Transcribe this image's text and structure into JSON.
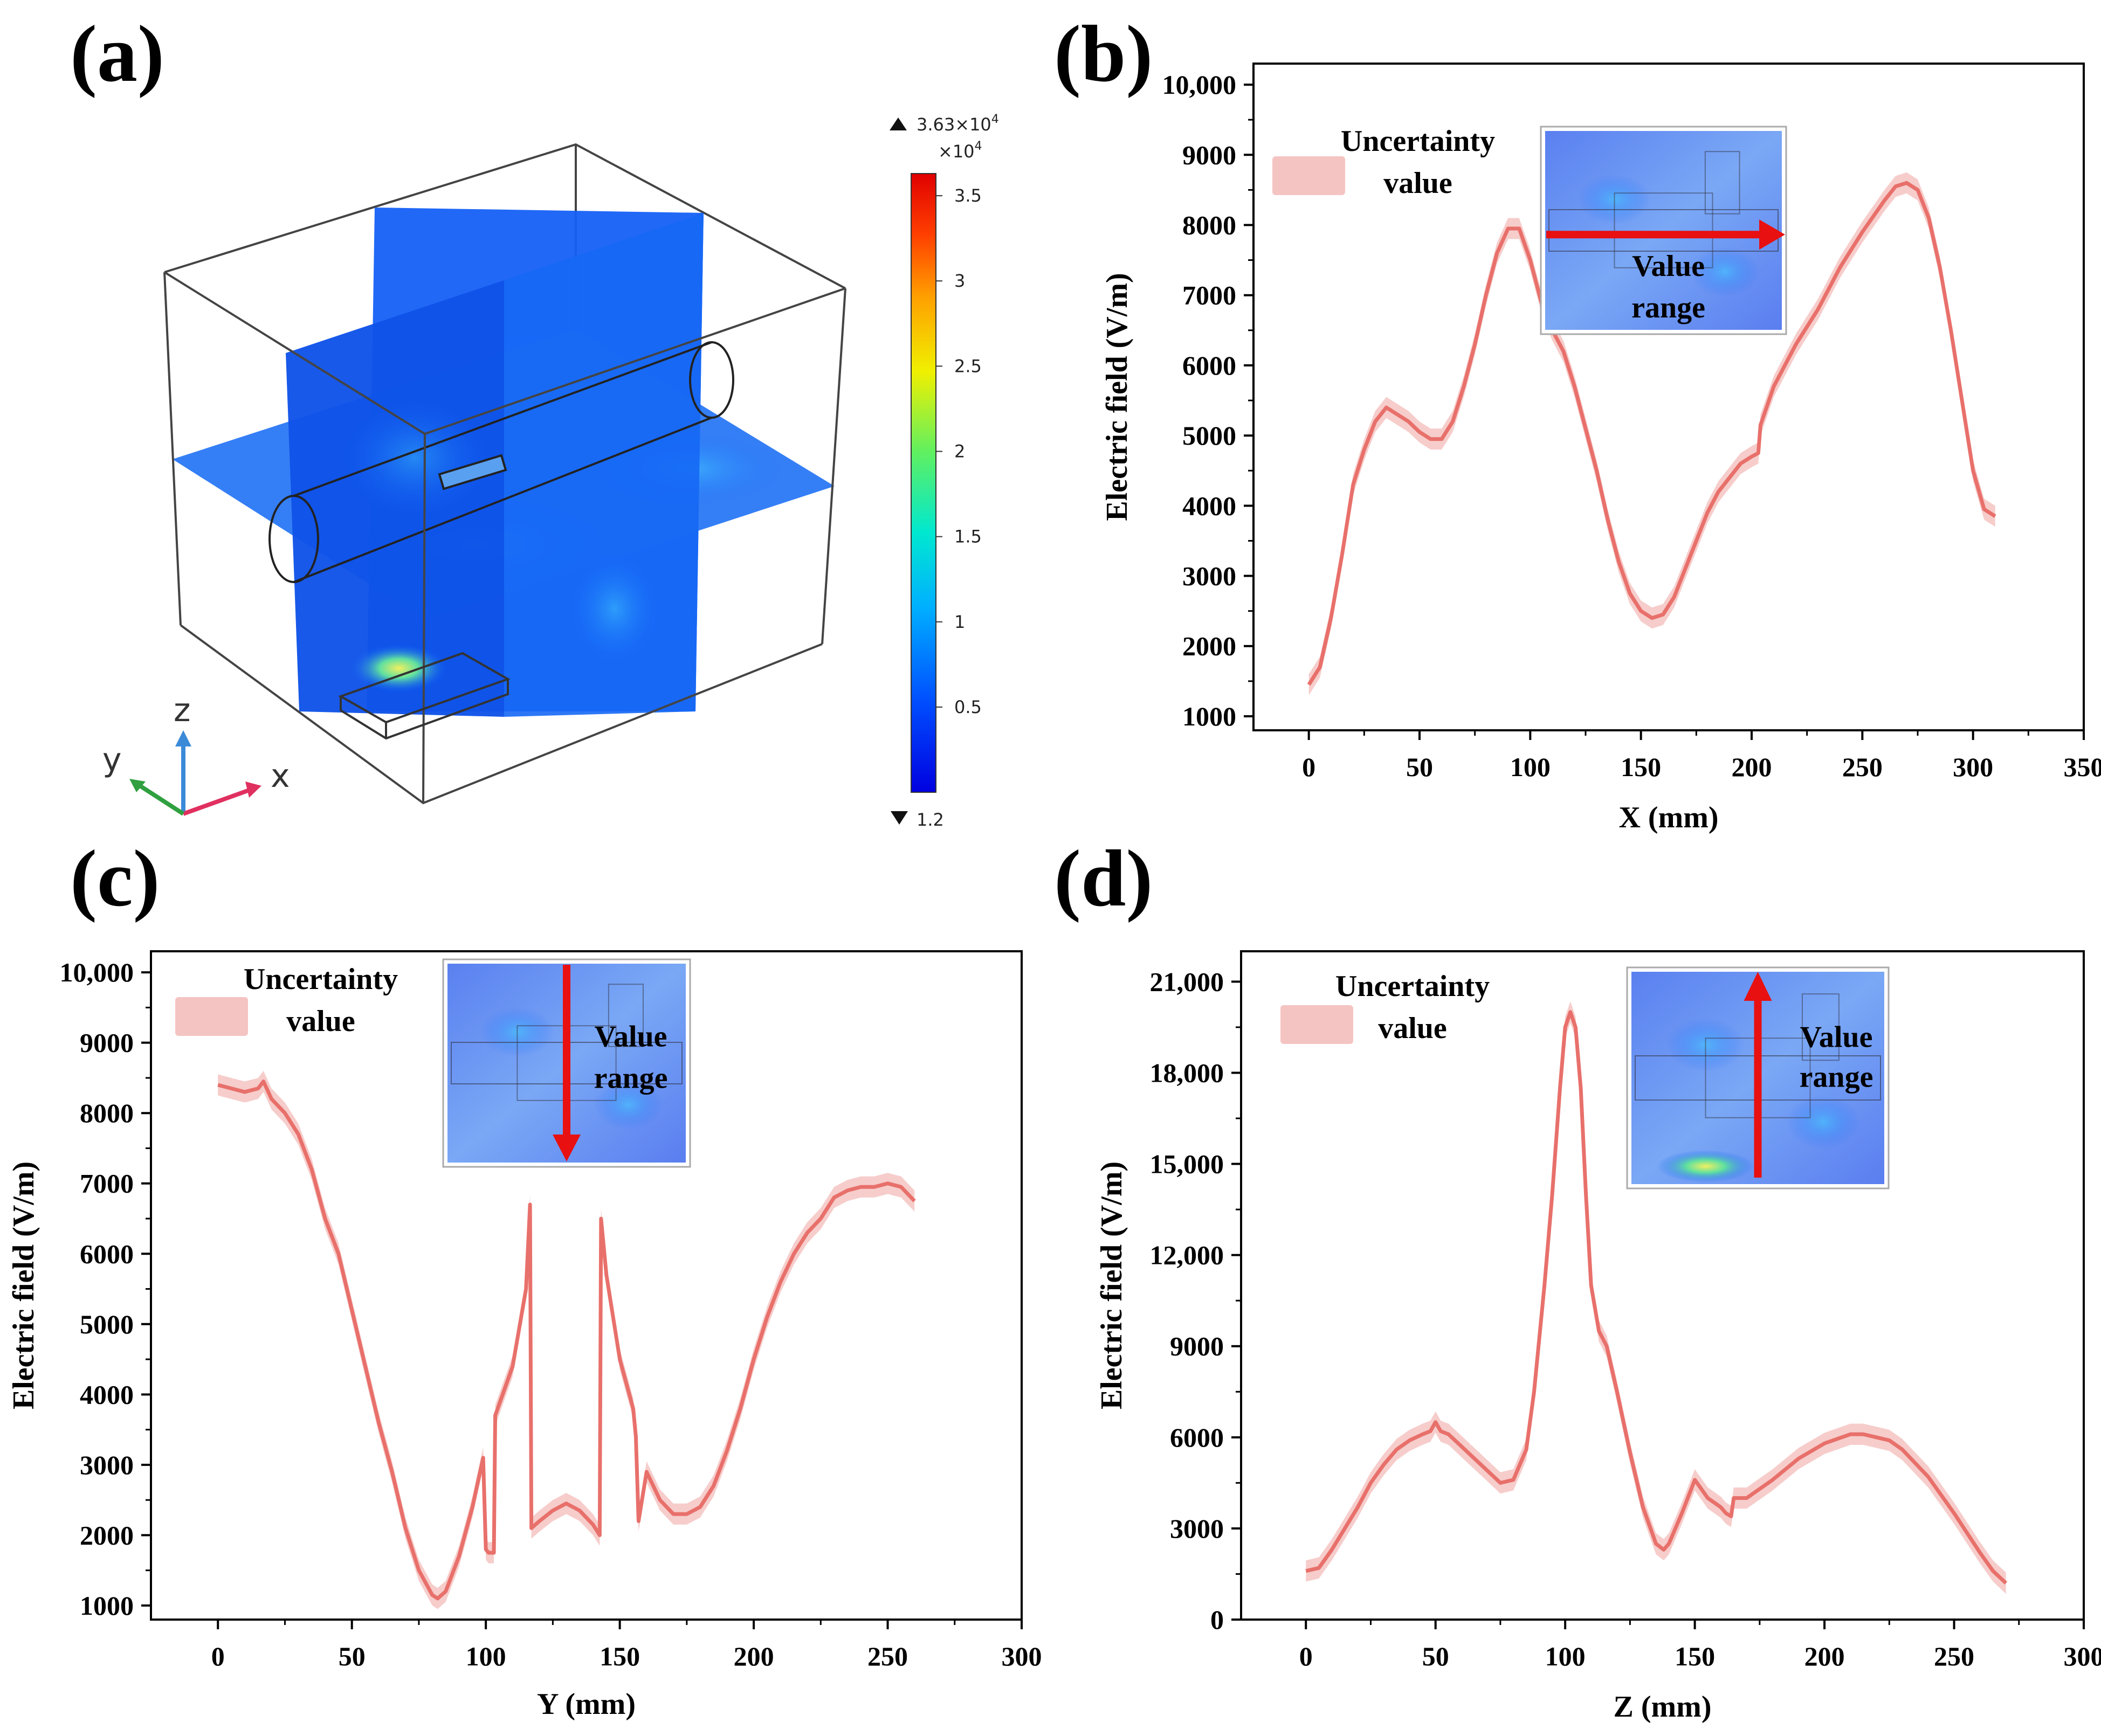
{
  "panels": {
    "a": {
      "label": "(a)",
      "colorbar": {
        "max_label": "3.63×10",
        "max_exp": "4",
        "scale_label": "×10",
        "scale_exp": "4",
        "min_label": "1.2",
        "ticks": [
          "3.5",
          "3",
          "2.5",
          "2",
          "1.5",
          "1",
          "0.5"
        ]
      },
      "axes_triad": {
        "x": "x",
        "y": "y",
        "z": "z"
      }
    },
    "b": {
      "label": "(b)"
    },
    "c": {
      "label": "(c)"
    },
    "d": {
      "label": "(d)"
    }
  },
  "legend_label_line1": "Uncertainty",
  "legend_label_line2": "value",
  "inset_label_line1": "Value",
  "inset_label_line2": "range",
  "colors": {
    "line": "#e8706b",
    "band": "#f4c4c2",
    "arrow": "#e81010"
  },
  "chart_data": [
    {
      "panel": "b",
      "type": "line",
      "xlabel": "X (mm)",
      "ylabel": "Electric field (V/m)",
      "xlim": [
        -25,
        350
      ],
      "ylim": [
        800,
        10300
      ],
      "xticks": [
        0,
        50,
        100,
        150,
        200,
        250,
        300,
        350
      ],
      "yticks": [
        1000,
        2000,
        3000,
        4000,
        5000,
        6000,
        7000,
        8000,
        9000,
        10000
      ],
      "ytick_labels": [
        "1000",
        "2000",
        "3000",
        "4000",
        "5000",
        "6000",
        "7000",
        "8000",
        "9000",
        "10,000"
      ],
      "series": [
        {
          "x": [
            0,
            5,
            10,
            15,
            20,
            25,
            30,
            35,
            40,
            45,
            50,
            55,
            60,
            65,
            70,
            75,
            80,
            85,
            90,
            95,
            100,
            105,
            110,
            115,
            120,
            125,
            130,
            135,
            140,
            145,
            150,
            155,
            160,
            165,
            170,
            175,
            180,
            185,
            190,
            195,
            200,
            203,
            204,
            210,
            220,
            230,
            240,
            250,
            260,
            265,
            270,
            275,
            280,
            285,
            290,
            295,
            300,
            305,
            310
          ],
          "y": [
            1450,
            1700,
            2400,
            3300,
            4300,
            4800,
            5200,
            5400,
            5300,
            5200,
            5050,
            4950,
            4950,
            5200,
            5700,
            6300,
            7000,
            7600,
            7950,
            7950,
            7500,
            6900,
            6500,
            6200,
            5700,
            5100,
            4500,
            3800,
            3200,
            2750,
            2500,
            2400,
            2450,
            2700,
            3100,
            3500,
            3900,
            4200,
            4400,
            4600,
            4700,
            4750,
            5150,
            5700,
            6300,
            6800,
            7400,
            7900,
            8350,
            8550,
            8600,
            8500,
            8100,
            7400,
            6500,
            5500,
            4500,
            3950,
            3850
          ],
          "band": 150
        }
      ]
    },
    {
      "panel": "c",
      "type": "line",
      "xlabel": "Y (mm)",
      "ylabel": "Electric field (V/m)",
      "xlim": [
        -25,
        300
      ],
      "ylim": [
        800,
        10300
      ],
      "xticks": [
        0,
        50,
        100,
        150,
        200,
        250,
        300
      ],
      "yticks": [
        1000,
        2000,
        3000,
        4000,
        5000,
        6000,
        7000,
        8000,
        9000,
        10000
      ],
      "ytick_labels": [
        "1000",
        "2000",
        "3000",
        "4000",
        "5000",
        "6000",
        "7000",
        "8000",
        "9000",
        "10,000"
      ],
      "series": [
        {
          "x": [
            0,
            5,
            10,
            15,
            17,
            20,
            25,
            30,
            35,
            40,
            45,
            50,
            55,
            60,
            65,
            70,
            75,
            80,
            82,
            85,
            90,
            95,
            99,
            100,
            101,
            103,
            103.5,
            110,
            115,
            116.5,
            117,
            120,
            125,
            130,
            135,
            140,
            142.5,
            143,
            145,
            150,
            155,
            156,
            157,
            160,
            165,
            170,
            175,
            180,
            185,
            190,
            195,
            200,
            205,
            210,
            215,
            220,
            225,
            230,
            235,
            240,
            245,
            250,
            255,
            260
          ],
          "y": [
            8400,
            8350,
            8300,
            8350,
            8450,
            8200,
            8000,
            7700,
            7200,
            6500,
            6000,
            5200,
            4400,
            3600,
            2900,
            2100,
            1500,
            1150,
            1100,
            1200,
            1700,
            2400,
            3100,
            1800,
            1750,
            1750,
            3700,
            4400,
            5500,
            6700,
            2100,
            2200,
            2350,
            2450,
            2350,
            2150,
            2000,
            6500,
            5700,
            4500,
            3800,
            3400,
            2200,
            2900,
            2500,
            2300,
            2300,
            2400,
            2700,
            3200,
            3800,
            4500,
            5100,
            5600,
            6000,
            6300,
            6500,
            6800,
            6900,
            6950,
            6950,
            7000,
            6950,
            6750
          ],
          "band": 150
        }
      ]
    },
    {
      "panel": "d",
      "type": "line",
      "xlabel": "Z (mm)",
      "ylabel": "Electric field (V/m)",
      "xlim": [
        -25,
        300
      ],
      "ylim": [
        0,
        22000
      ],
      "xticks": [
        0,
        50,
        100,
        150,
        200,
        250,
        300
      ],
      "yticks": [
        0,
        3000,
        6000,
        9000,
        12000,
        15000,
        18000,
        21000
      ],
      "ytick_labels": [
        "0",
        "3000",
        "6000",
        "9000",
        "12,000",
        "15,000",
        "18,000",
        "21,000"
      ],
      "series": [
        {
          "x": [
            0,
            5,
            10,
            15,
            20,
            25,
            30,
            35,
            40,
            45,
            48,
            50,
            52,
            55,
            60,
            65,
            70,
            75,
            80,
            85,
            88,
            92,
            95,
            98,
            100,
            102,
            104,
            106,
            108,
            110,
            113,
            116,
            120,
            125,
            130,
            135,
            138,
            140,
            145,
            150,
            155,
            160,
            162,
            164,
            165,
            170,
            180,
            190,
            200,
            210,
            215,
            220,
            225,
            230,
            240,
            250,
            260,
            265,
            270
          ],
          "y": [
            1600,
            1700,
            2300,
            3000,
            3700,
            4500,
            5100,
            5600,
            5900,
            6100,
            6200,
            6500,
            6200,
            6100,
            5700,
            5300,
            4900,
            4500,
            4600,
            5600,
            7500,
            11000,
            14000,
            17500,
            19500,
            20000,
            19500,
            17500,
            14000,
            11000,
            9500,
            9000,
            7500,
            5500,
            3700,
            2500,
            2300,
            2500,
            3500,
            4600,
            4000,
            3700,
            3500,
            3400,
            4000,
            4000,
            4600,
            5300,
            5800,
            6100,
            6100,
            6000,
            5900,
            5600,
            4700,
            3500,
            2200,
            1600,
            1200
          ],
          "band": 350
        }
      ]
    }
  ]
}
